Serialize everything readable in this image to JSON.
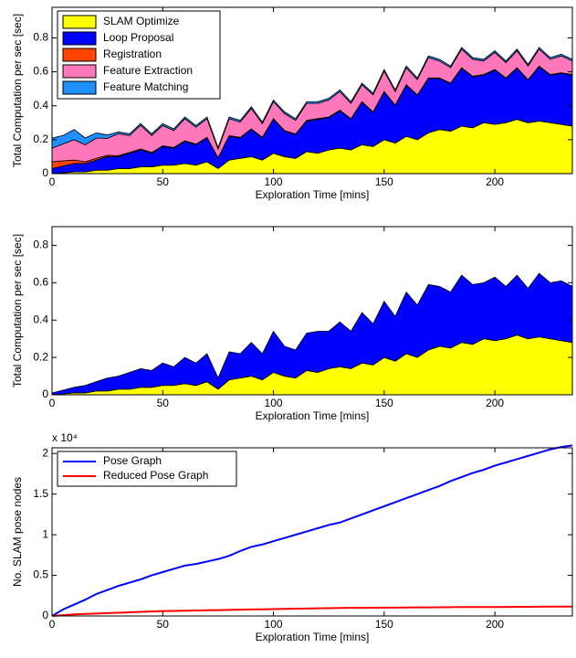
{
  "chart_data": [
    {
      "type": "area",
      "stacked": true,
      "ylabel": "Total Computation per sec [sec]",
      "xlabel": "Exploration Time [mins]",
      "x": [
        0,
        5,
        10,
        15,
        20,
        25,
        30,
        35,
        40,
        45,
        50,
        55,
        60,
        65,
        70,
        75,
        80,
        85,
        90,
        95,
        100,
        105,
        110,
        115,
        120,
        125,
        130,
        135,
        140,
        145,
        150,
        155,
        160,
        165,
        170,
        175,
        180,
        185,
        190,
        195,
        200,
        205,
        210,
        215,
        220,
        225,
        230,
        235
      ],
      "xlim": [
        0,
        235
      ],
      "ylim": [
        0,
        0.98
      ],
      "xticks": [
        0,
        50,
        100,
        150,
        200
      ],
      "yticks": [
        0,
        0.2,
        0.4,
        0.6,
        0.8
      ],
      "legend": "upper left",
      "series": [
        {
          "name": "SLAM Optimize",
          "color": "#ffff00",
          "values": [
            0,
            0.005,
            0.01,
            0.01,
            0.02,
            0.02,
            0.03,
            0.03,
            0.04,
            0.04,
            0.05,
            0.05,
            0.06,
            0.05,
            0.07,
            0.03,
            0.08,
            0.09,
            0.1,
            0.08,
            0.12,
            0.1,
            0.09,
            0.13,
            0.12,
            0.14,
            0.15,
            0.14,
            0.17,
            0.16,
            0.2,
            0.18,
            0.22,
            0.2,
            0.24,
            0.26,
            0.25,
            0.28,
            0.27,
            0.3,
            0.29,
            0.3,
            0.32,
            0.3,
            0.31,
            0.3,
            0.29,
            0.28
          ]
        },
        {
          "name": "Loop Proposal",
          "color": "#0000ff",
          "values": [
            0.03,
            0.04,
            0.05,
            0.05,
            0.06,
            0.08,
            0.07,
            0.09,
            0.1,
            0.08,
            0.11,
            0.1,
            0.13,
            0.12,
            0.14,
            0.06,
            0.14,
            0.12,
            0.16,
            0.13,
            0.2,
            0.15,
            0.14,
            0.18,
            0.2,
            0.19,
            0.22,
            0.18,
            0.25,
            0.2,
            0.28,
            0.22,
            0.3,
            0.26,
            0.32,
            0.3,
            0.28,
            0.34,
            0.3,
            0.28,
            0.32,
            0.26,
            0.3,
            0.25,
            0.32,
            0.28,
            0.3,
            0.3
          ]
        },
        {
          "name": "Registration",
          "color": "#ff4500",
          "values": [
            0.04,
            0.03,
            0.02,
            0.01,
            0.01,
            0.008,
            0.006,
            0.005,
            0.005,
            0.005,
            0.004,
            0.004,
            0.004,
            0.004,
            0.004,
            0.004,
            0.004,
            0.004,
            0.004,
            0.004,
            0.004,
            0.004,
            0.004,
            0.004,
            0.004,
            0.004,
            0.004,
            0.004,
            0.004,
            0.004,
            0.004,
            0.004,
            0.004,
            0.004,
            0.004,
            0.004,
            0.004,
            0.004,
            0.004,
            0.004,
            0.004,
            0.004,
            0.004,
            0.004,
            0.004,
            0.004,
            0.004,
            0.004
          ]
        },
        {
          "name": "Feature Extraction",
          "color": "#ff77bb",
          "values": [
            0.08,
            0.1,
            0.12,
            0.1,
            0.12,
            0.1,
            0.13,
            0.1,
            0.14,
            0.1,
            0.12,
            0.1,
            0.13,
            0.1,
            0.11,
            0.05,
            0.1,
            0.09,
            0.12,
            0.08,
            0.1,
            0.1,
            0.08,
            0.1,
            0.09,
            0.1,
            0.11,
            0.09,
            0.1,
            0.1,
            0.12,
            0.08,
            0.1,
            0.09,
            0.12,
            0.1,
            0.09,
            0.11,
            0.1,
            0.08,
            0.1,
            0.09,
            0.1,
            0.08,
            0.1,
            0.09,
            0.1,
            0.08
          ]
        },
        {
          "name": "Feature Matching",
          "color": "#1e90ff",
          "values": [
            0.06,
            0.05,
            0.06,
            0.04,
            0.03,
            0.02,
            0.01,
            0.01,
            0.01,
            0.01,
            0.01,
            0.01,
            0.01,
            0.01,
            0.01,
            0.01,
            0.01,
            0.01,
            0.01,
            0.01,
            0.01,
            0.01,
            0.01,
            0.01,
            0.01,
            0.01,
            0.01,
            0.01,
            0.01,
            0.01,
            0.01,
            0.01,
            0.01,
            0.01,
            0.01,
            0.01,
            0.01,
            0.01,
            0.01,
            0.01,
            0.01,
            0.01,
            0.01,
            0.01,
            0.01,
            0.01,
            0.01,
            0.01
          ]
        }
      ]
    },
    {
      "type": "area",
      "stacked": true,
      "ylabel": "Total Computation per sec [sec]",
      "xlabel": "Exploration Time [mins]",
      "x": [
        0,
        5,
        10,
        15,
        20,
        25,
        30,
        35,
        40,
        45,
        50,
        55,
        60,
        65,
        70,
        75,
        80,
        85,
        90,
        95,
        100,
        105,
        110,
        115,
        120,
        125,
        130,
        135,
        140,
        145,
        150,
        155,
        160,
        165,
        170,
        175,
        180,
        185,
        190,
        195,
        200,
        205,
        210,
        215,
        220,
        225,
        230,
        235
      ],
      "xlim": [
        0,
        235
      ],
      "ylim": [
        0,
        0.9
      ],
      "xticks": [
        0,
        50,
        100,
        150,
        200
      ],
      "yticks": [
        0,
        0.2,
        0.4,
        0.6,
        0.8
      ],
      "series": [
        {
          "color": "#ffff00",
          "values": [
            0,
            0.005,
            0.01,
            0.01,
            0.02,
            0.02,
            0.03,
            0.03,
            0.04,
            0.04,
            0.05,
            0.05,
            0.06,
            0.05,
            0.07,
            0.03,
            0.08,
            0.09,
            0.1,
            0.08,
            0.12,
            0.1,
            0.09,
            0.13,
            0.12,
            0.14,
            0.15,
            0.14,
            0.17,
            0.16,
            0.2,
            0.18,
            0.22,
            0.2,
            0.24,
            0.26,
            0.25,
            0.28,
            0.27,
            0.3,
            0.29,
            0.3,
            0.32,
            0.3,
            0.31,
            0.3,
            0.29,
            0.28
          ]
        },
        {
          "color": "#0000ff",
          "values": [
            0.01,
            0.02,
            0.03,
            0.04,
            0.05,
            0.07,
            0.07,
            0.09,
            0.1,
            0.09,
            0.12,
            0.1,
            0.14,
            0.12,
            0.15,
            0.06,
            0.15,
            0.13,
            0.18,
            0.14,
            0.22,
            0.16,
            0.15,
            0.2,
            0.22,
            0.2,
            0.24,
            0.2,
            0.27,
            0.22,
            0.3,
            0.24,
            0.33,
            0.28,
            0.35,
            0.32,
            0.3,
            0.36,
            0.32,
            0.3,
            0.34,
            0.28,
            0.32,
            0.27,
            0.34,
            0.3,
            0.32,
            0.3
          ]
        }
      ]
    },
    {
      "type": "line",
      "ylabel": "No. SLAM pose nodes",
      "xlabel": "Exploration Time [mins]",
      "y_multiplier": "x 10⁴",
      "x": [
        0,
        5,
        10,
        15,
        20,
        25,
        30,
        35,
        40,
        45,
        50,
        55,
        60,
        65,
        70,
        75,
        80,
        85,
        90,
        95,
        100,
        105,
        110,
        115,
        120,
        125,
        130,
        135,
        140,
        145,
        150,
        155,
        160,
        165,
        170,
        175,
        180,
        185,
        190,
        195,
        200,
        205,
        210,
        215,
        220,
        225,
        230,
        235
      ],
      "xlim": [
        0,
        235
      ],
      "ylim": [
        0,
        2.07
      ],
      "xticks": [
        0,
        50,
        100,
        150,
        200
      ],
      "yticks": [
        0,
        0.5,
        1,
        1.5,
        2
      ],
      "legend": "upper left",
      "series": [
        {
          "name": "Pose Graph",
          "color": "#0000ff",
          "values": [
            0,
            0.08,
            0.14,
            0.2,
            0.27,
            0.32,
            0.37,
            0.41,
            0.45,
            0.5,
            0.54,
            0.58,
            0.62,
            0.64,
            0.67,
            0.7,
            0.74,
            0.8,
            0.85,
            0.88,
            0.92,
            0.96,
            1.0,
            1.04,
            1.08,
            1.12,
            1.15,
            1.2,
            1.25,
            1.3,
            1.35,
            1.4,
            1.45,
            1.5,
            1.55,
            1.6,
            1.66,
            1.71,
            1.76,
            1.8,
            1.85,
            1.89,
            1.93,
            1.97,
            2.01,
            2.05,
            2.08,
            2.1
          ]
        },
        {
          "name": "Reduced Pose Graph",
          "color": "#ff0000",
          "values": [
            0,
            0.01,
            0.02,
            0.025,
            0.03,
            0.035,
            0.04,
            0.045,
            0.05,
            0.055,
            0.06,
            0.062,
            0.065,
            0.068,
            0.07,
            0.072,
            0.075,
            0.078,
            0.08,
            0.082,
            0.085,
            0.087,
            0.09,
            0.092,
            0.094,
            0.096,
            0.098,
            0.1,
            0.1,
            0.101,
            0.102,
            0.103,
            0.104,
            0.105,
            0.106,
            0.107,
            0.108,
            0.109,
            0.11,
            0.11,
            0.11,
            0.111,
            0.112,
            0.113,
            0.114,
            0.115,
            0.115,
            0.116
          ]
        }
      ]
    }
  ]
}
